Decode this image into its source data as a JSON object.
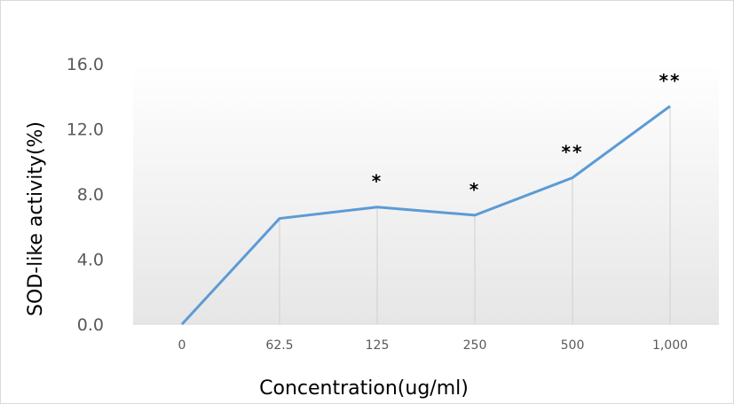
{
  "chart_data": {
    "type": "line",
    "categories": [
      "0",
      "62.5",
      "125",
      "250",
      "500",
      "1,000"
    ],
    "series": [
      {
        "values": [
          0.0,
          6.5,
          7.2,
          6.7,
          9.0,
          13.4
        ]
      }
    ],
    "significance": [
      "",
      "",
      "*",
      "*",
      "**",
      "**"
    ],
    "yticks": [
      "0.0",
      "4.0",
      "8.0",
      "12.0",
      "16.0"
    ],
    "ylim": [
      0,
      16
    ],
    "xlabel": "Concentration(ug/ml)",
    "ylabel": "SOD-like activity(%)",
    "title": "",
    "grid": false,
    "drop_lines": true,
    "plot_area_fill": "gradient-gray",
    "line_color": "#5b9bd5"
  }
}
